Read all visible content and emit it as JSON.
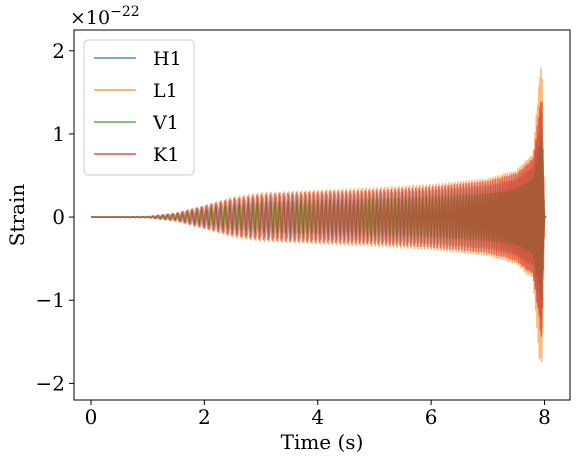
{
  "chart_data": {
    "type": "line",
    "title": "",
    "xlabel": "Time (s)",
    "ylabel": "Strain",
    "y_offset_base": "×10",
    "y_offset_exponent": "−22",
    "xlim": [
      -0.3,
      8.45
    ],
    "ylim": [
      -2.2,
      2.25
    ],
    "x_ticks": [
      0,
      2,
      4,
      6,
      8
    ],
    "x_tick_labels": [
      "0",
      "2",
      "4",
      "6",
      "8"
    ],
    "y_ticks": [
      -2,
      -1,
      0,
      1,
      2
    ],
    "y_tick_labels": [
      "−2",
      "−1",
      "0",
      "1",
      "2"
    ],
    "grid": false,
    "legend_position": "top-left",
    "series": [
      {
        "name": "H1",
        "color": "#1f77b4",
        "envelope": {
          "t": [
            0,
            1.0,
            1.5,
            2.0,
            2.5,
            3.0,
            4.0,
            5.0,
            6.0,
            7.0,
            7.5,
            7.8,
            7.95,
            8.0
          ],
          "amp": [
            0.0,
            0.005,
            0.04,
            0.12,
            0.2,
            0.24,
            0.27,
            0.29,
            0.32,
            0.38,
            0.45,
            0.6,
            1.35,
            0.0
          ]
        }
      },
      {
        "name": "L1",
        "color": "#ff7f0e",
        "envelope": {
          "t": [
            0,
            1.0,
            1.5,
            2.0,
            2.5,
            3.0,
            4.0,
            5.0,
            6.0,
            7.0,
            7.5,
            7.8,
            7.95,
            8.0
          ],
          "amp": [
            0.0,
            0.006,
            0.05,
            0.14,
            0.24,
            0.29,
            0.32,
            0.35,
            0.39,
            0.46,
            0.56,
            0.75,
            2.05,
            0.0
          ]
        }
      },
      {
        "name": "V1",
        "color": "#2ca02c",
        "envelope": {
          "t": [
            0,
            1.0,
            1.5,
            2.0,
            2.5,
            3.0,
            4.0,
            5.0,
            6.0,
            7.0,
            7.5,
            7.8,
            7.95,
            8.0
          ],
          "amp": [
            0.0,
            0.004,
            0.03,
            0.09,
            0.15,
            0.18,
            0.2,
            0.22,
            0.24,
            0.28,
            0.33,
            0.45,
            1.0,
            0.0
          ]
        }
      },
      {
        "name": "K1",
        "color": "#d62728",
        "envelope": {
          "t": [
            0,
            1.0,
            1.5,
            2.0,
            2.5,
            3.0,
            4.0,
            5.0,
            6.0,
            7.0,
            7.5,
            7.8,
            7.95,
            8.0
          ],
          "amp": [
            0.0,
            0.006,
            0.045,
            0.13,
            0.22,
            0.27,
            0.3,
            0.32,
            0.36,
            0.43,
            0.52,
            0.7,
            1.5,
            0.0
          ]
        }
      }
    ]
  }
}
